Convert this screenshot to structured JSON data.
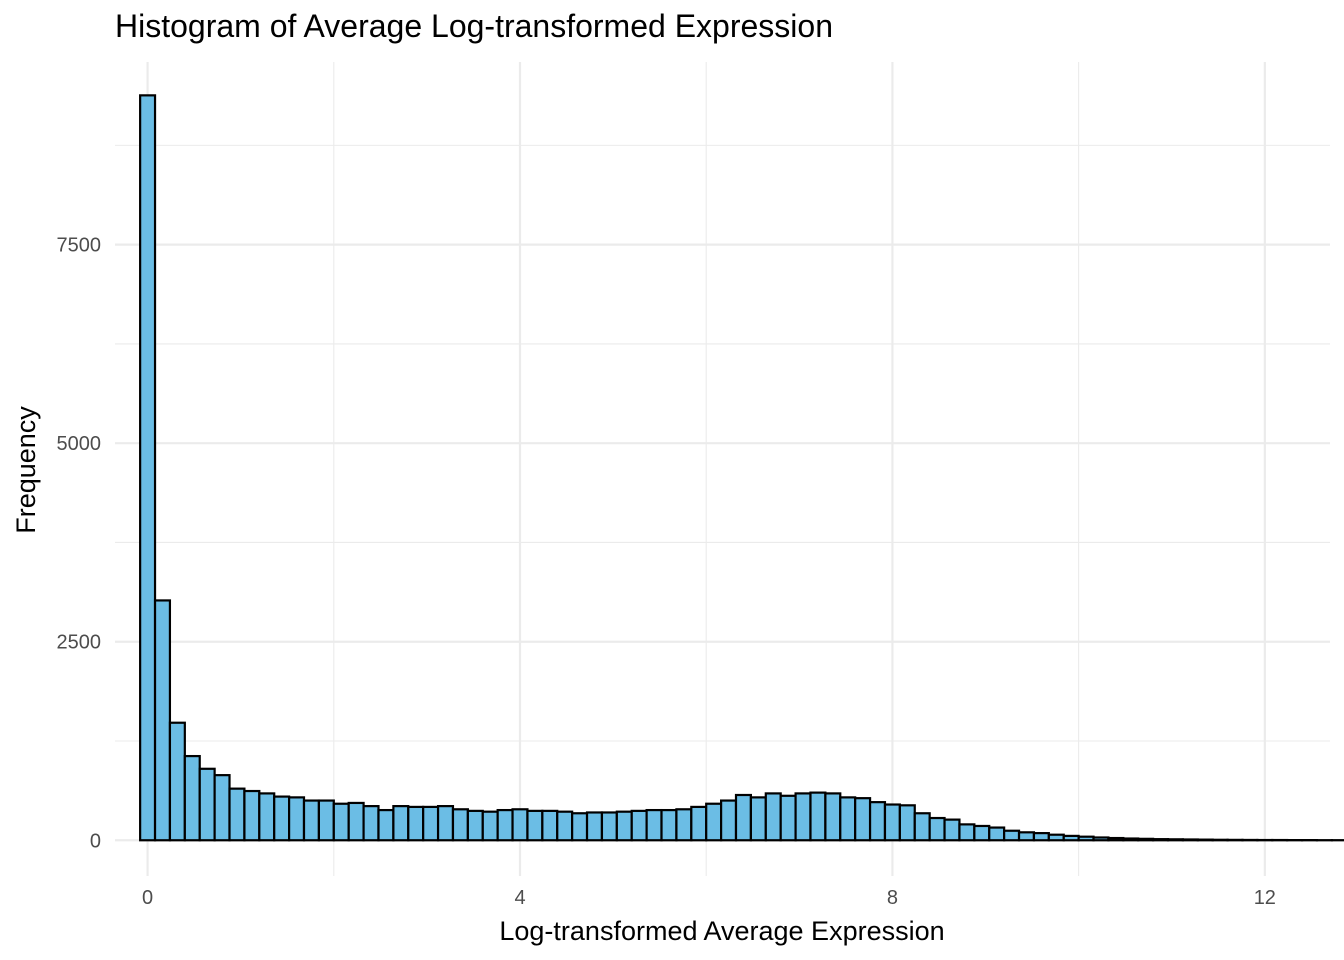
{
  "chart_data": {
    "type": "bar",
    "subtype": "histogram",
    "title": "Histogram of Average Log-transformed Expression",
    "xlabel": "Log-transformed Average Expression",
    "ylabel": "Frequency",
    "xlim": [
      -0.35,
      12.7
    ],
    "ylim": [
      -450,
      9800
    ],
    "x_ticks": [
      0,
      4,
      8,
      12
    ],
    "y_ticks": [
      0,
      2500,
      5000,
      7500
    ],
    "grid": true,
    "legend": "none",
    "colors": {
      "fill": "#6bbde5",
      "stroke": "#000000",
      "grid": "#ebebeb"
    },
    "bin_start": -0.08,
    "bin_width": 0.16,
    "values": [
      9380,
      3020,
      1480,
      1060,
      900,
      820,
      650,
      620,
      590,
      550,
      540,
      500,
      500,
      460,
      470,
      430,
      380,
      430,
      420,
      420,
      430,
      390,
      370,
      360,
      380,
      390,
      370,
      370,
      360,
      340,
      350,
      350,
      360,
      370,
      380,
      380,
      390,
      420,
      460,
      500,
      570,
      540,
      590,
      560,
      590,
      600,
      590,
      540,
      530,
      480,
      450,
      440,
      340,
      280,
      260,
      200,
      180,
      160,
      120,
      100,
      90,
      70,
      55,
      45,
      35,
      28,
      22,
      18,
      14,
      12,
      10,
      8,
      6,
      5,
      4,
      3,
      3,
      2,
      2,
      1,
      1,
      1
    ]
  }
}
